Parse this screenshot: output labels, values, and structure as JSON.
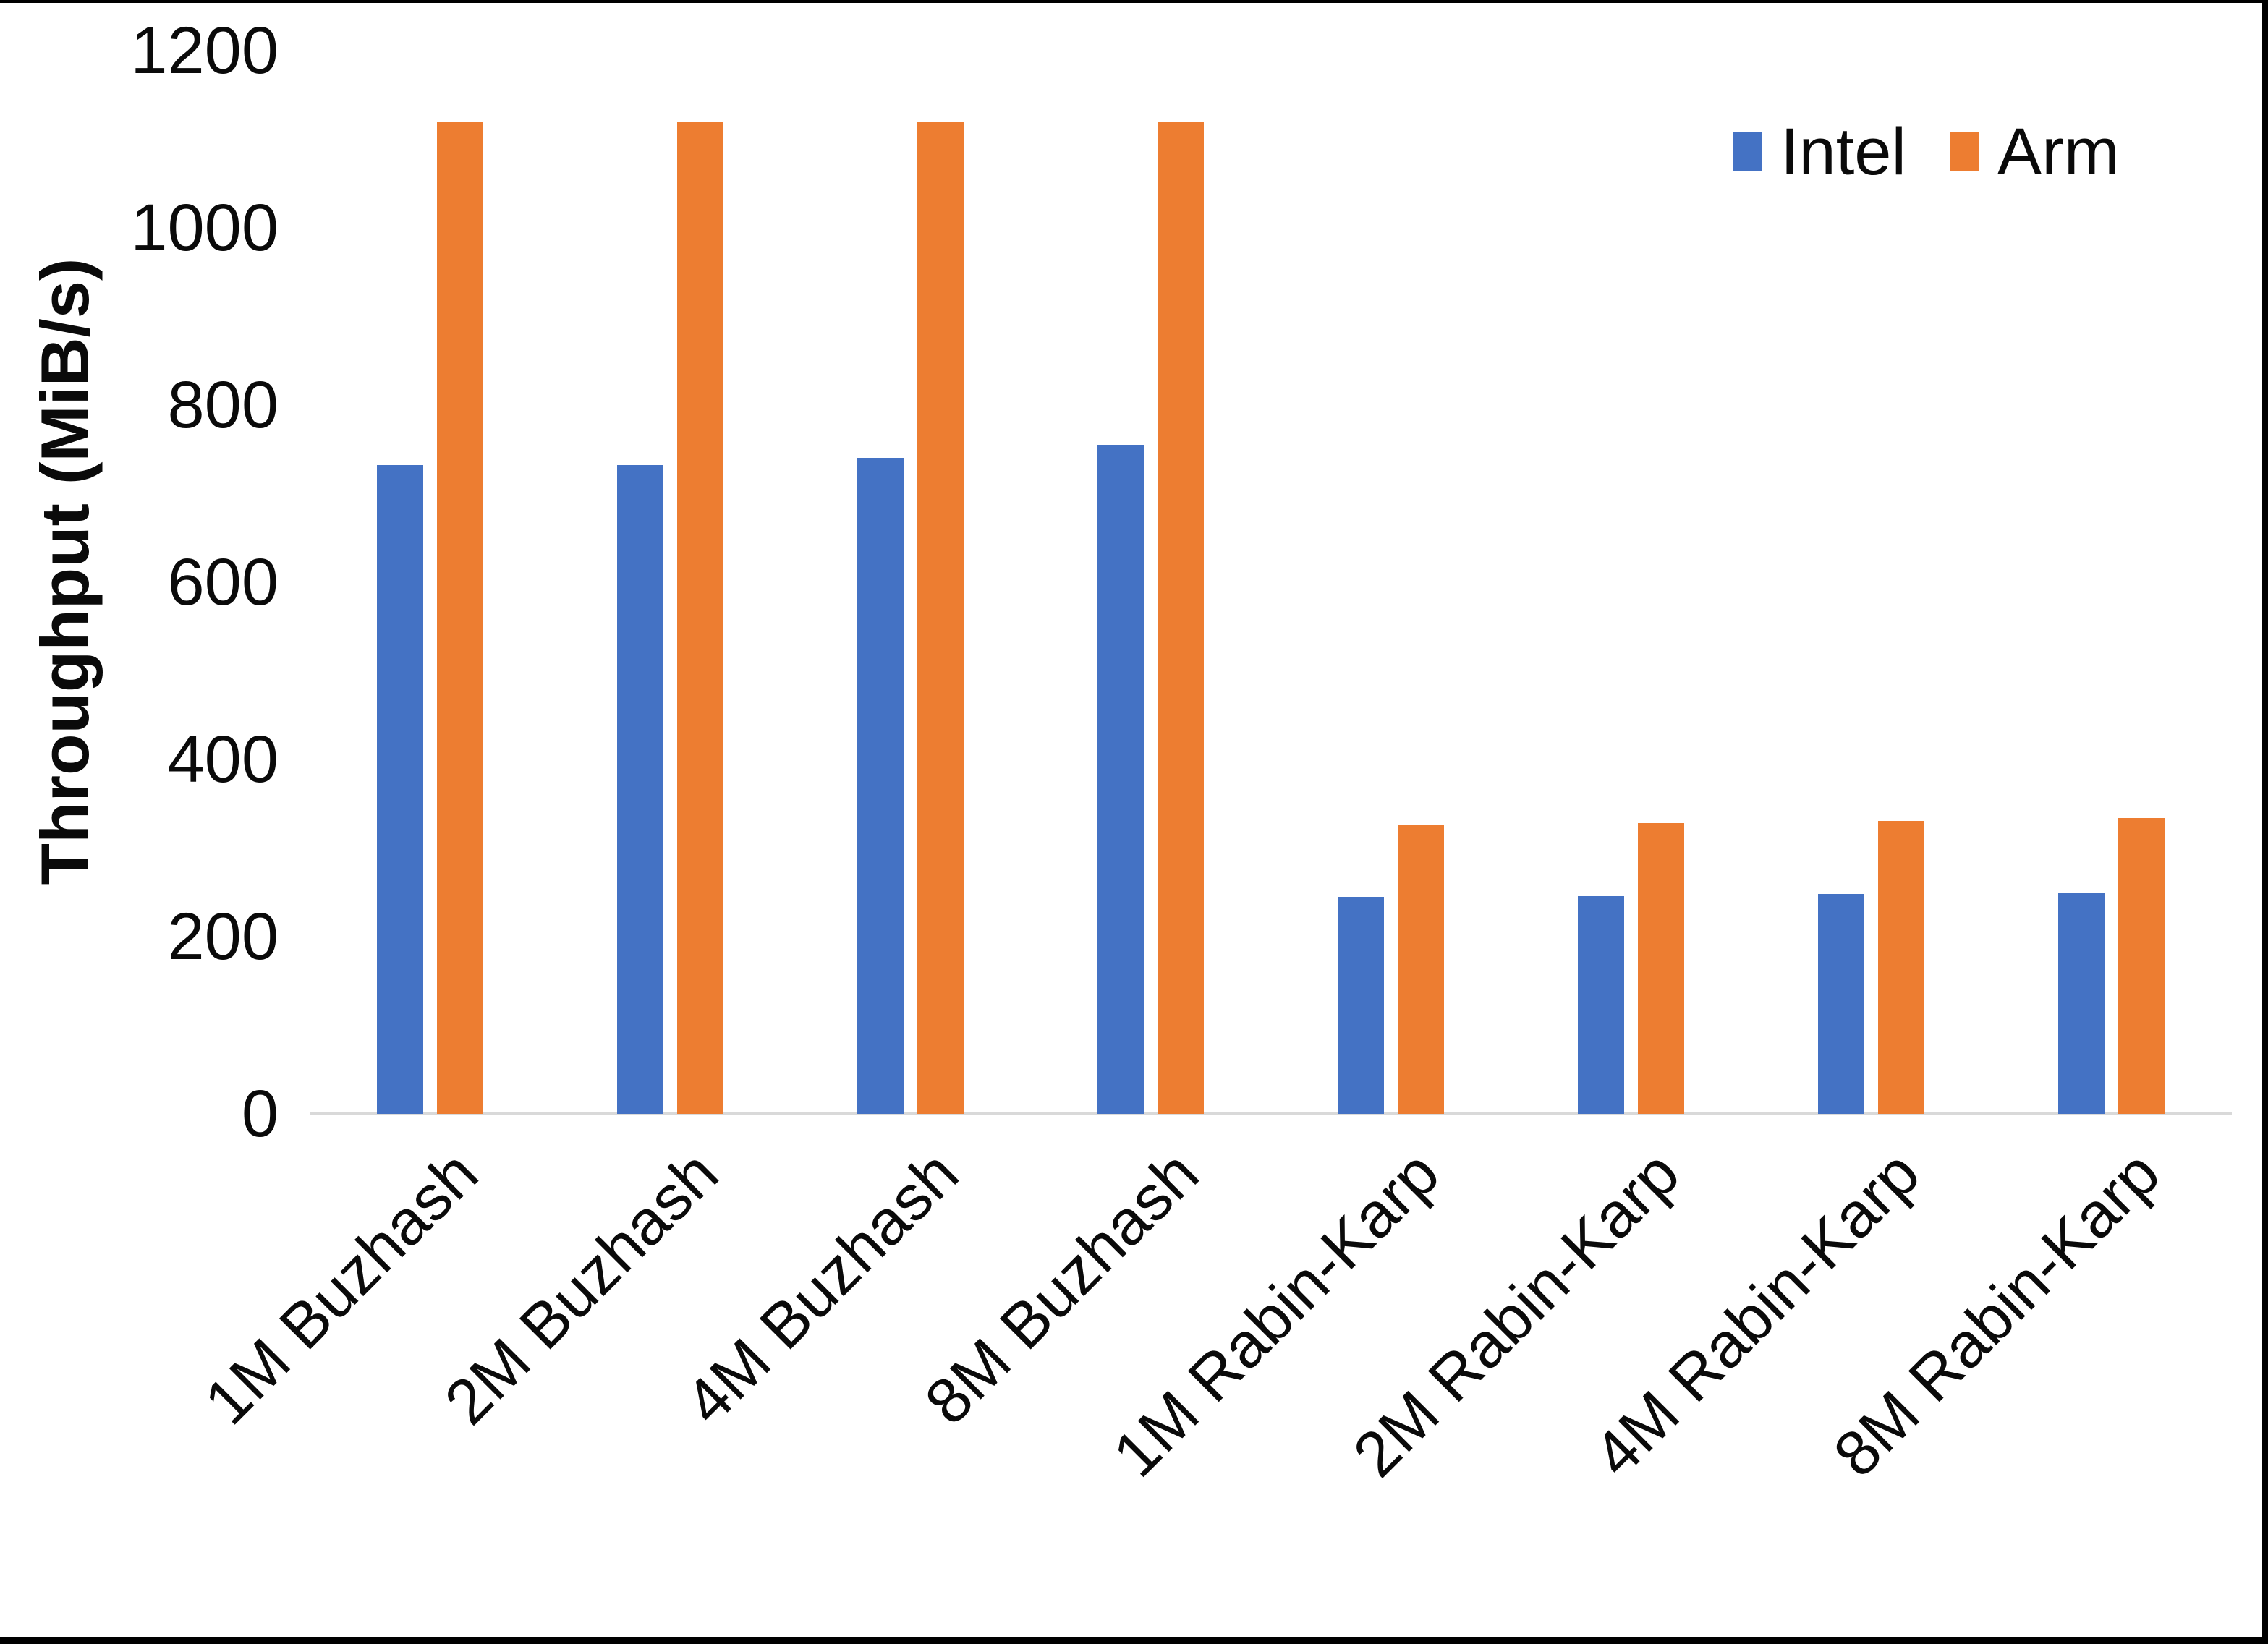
{
  "chart_data": {
    "type": "bar",
    "title": "",
    "xlabel": "",
    "ylabel": "Throughput (MiB/s)",
    "categories": [
      "1M Buzhash",
      "2M Buzhash",
      "4M Buzhash",
      "8M Buzhash",
      "1M Rabin-Karp",
      "2M Rabin-Karp",
      "4M Rabin-Karp",
      "8M Rabin-Karp"
    ],
    "series": [
      {
        "name": "Intel",
        "color": "#4472C4",
        "values": [
          732,
          732,
          740,
          755,
          245,
          246,
          248,
          250
        ]
      },
      {
        "name": "Arm",
        "color": "#ED7D31",
        "values": [
          1120,
          1120,
          1120,
          1120,
          326,
          328,
          331,
          334
        ]
      }
    ],
    "ylim": [
      0,
      1200
    ],
    "yticks": [
      0,
      200,
      400,
      600,
      800,
      1000,
      1200
    ],
    "grid": false,
    "legend_position": "top-right",
    "x_label_rotation_deg": -45
  },
  "colors": {
    "background": "#FFFFFF",
    "axis_line": "#D9D9D9",
    "text": "#0A0A0A",
    "frame": "#000000",
    "intel": "#4472C4",
    "arm": "#ED7D31"
  }
}
